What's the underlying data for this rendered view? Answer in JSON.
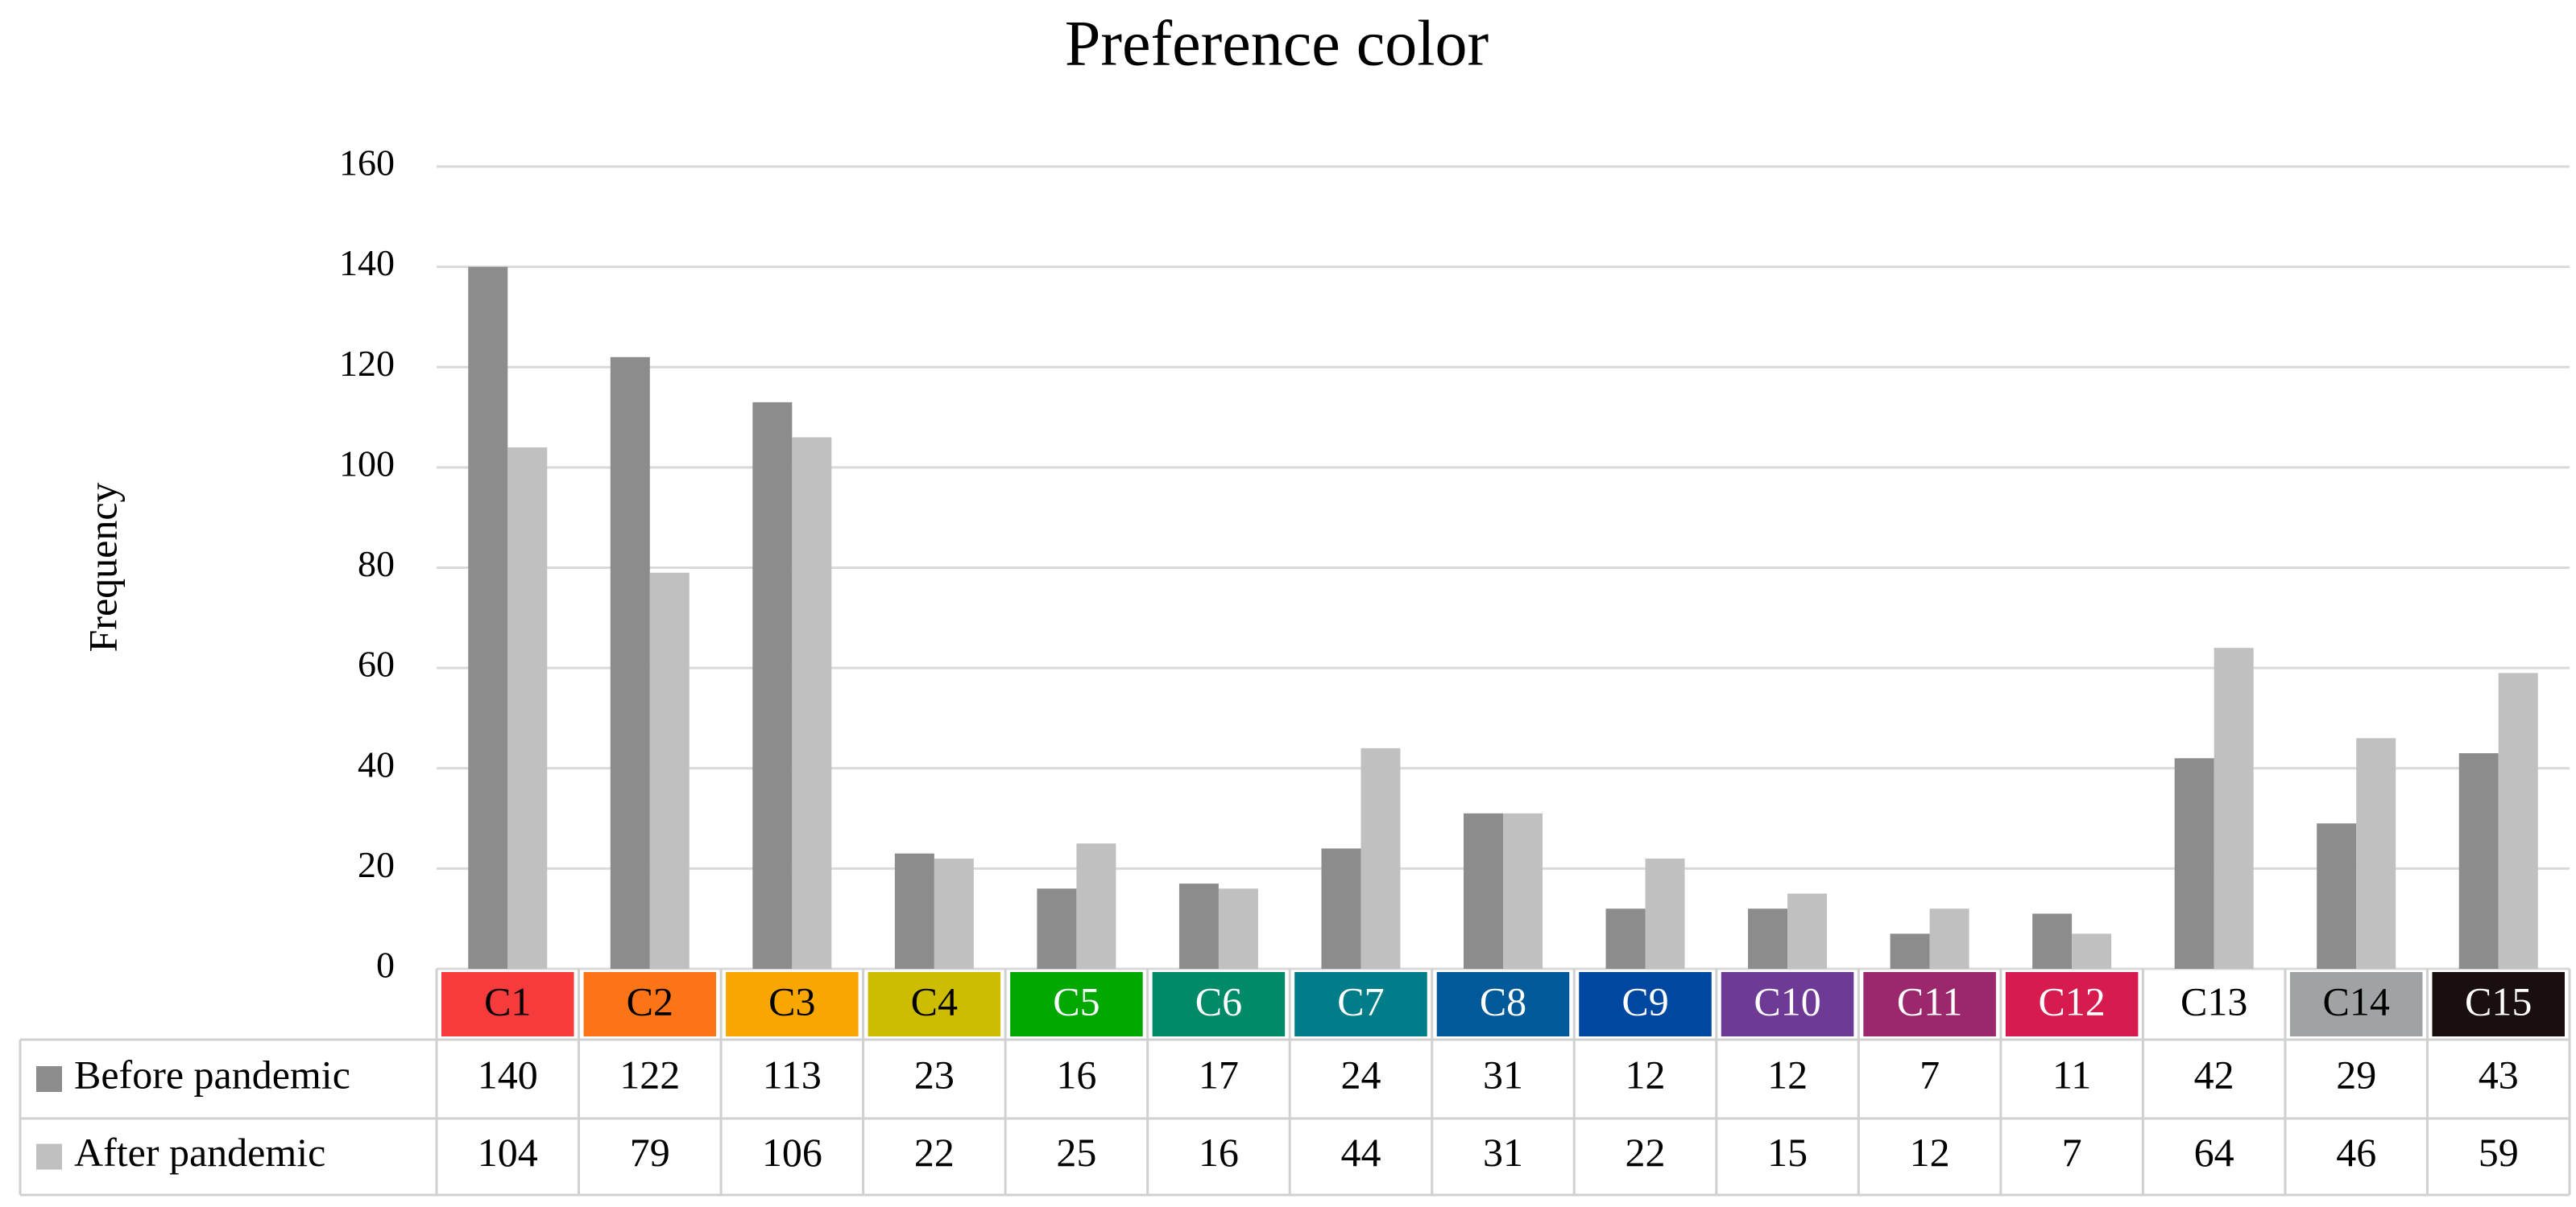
{
  "chart_data": {
    "type": "bar",
    "title": "Preference color",
    "y_label": "Frequency",
    "categories": [
      "C1",
      "C2",
      "C3",
      "C4",
      "C5",
      "C6",
      "C7",
      "C8",
      "C9",
      "C10",
      "C11",
      "C12",
      "C13",
      "C14",
      "C15"
    ],
    "category_colors": [
      "#f53b3b",
      "#fb7417",
      "#f9a600",
      "#cdbc00",
      "#00a800",
      "#008a68",
      "#007d88",
      "#005a9a",
      "#0047a2",
      "#6d3b95",
      "#9b276c",
      "#d81b4f",
      "#ffffff",
      "#9fa3a4",
      "#1a0f0f"
    ],
    "series": [
      {
        "name": "Before pandemic",
        "color": "#8c8c8c",
        "values": [
          140,
          122,
          113,
          23,
          16,
          17,
          24,
          31,
          12,
          12,
          7,
          11,
          42,
          29,
          43
        ]
      },
      {
        "name": "After pandemic",
        "color": "#c0c0c0",
        "values": [
          104,
          79,
          106,
          22,
          25,
          16,
          44,
          31,
          22,
          15,
          12,
          7,
          64,
          46,
          59
        ]
      }
    ],
    "ylim": [
      0,
      160
    ],
    "yticks": [
      0,
      20,
      40,
      60,
      80,
      100,
      120,
      140,
      160
    ],
    "grid": true
  }
}
